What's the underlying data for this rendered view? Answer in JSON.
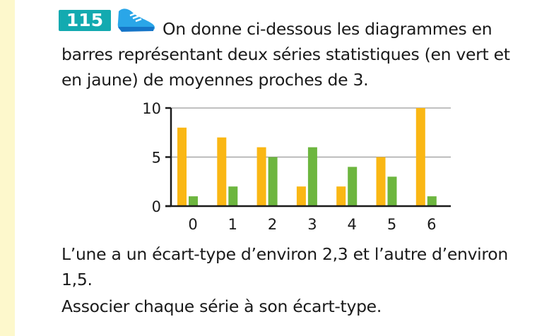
{
  "exercise": {
    "number": "115",
    "icon": "sneaker-icon",
    "intro_line1": "On donne ci-dessous les diagrammes en",
    "intro_line2": "barres représentant deux séries statistiques (en vert et",
    "intro_line3": "en jaune) de moyennes proches de 3.",
    "after_line1": "L’une a un écart-type d’environ 2,3 et l’autre d’environ",
    "after_line2": "1,5.",
    "after_line3": "Associer chaque série à son écart-type."
  },
  "colors": {
    "badge": "#13aab0",
    "yellow_series": "#fab714",
    "green_series": "#6db63f",
    "margin_strip": "#fdf8cc"
  },
  "chart_data": {
    "type": "bar",
    "categories": [
      "0",
      "1",
      "2",
      "3",
      "4",
      "5",
      "6"
    ],
    "series": [
      {
        "color": "#fab714",
        "values": [
          8,
          7,
          6,
          2,
          2,
          5,
          10
        ]
      },
      {
        "color": "#6db63f",
        "values": [
          1,
          2,
          5,
          6,
          4,
          3,
          1
        ]
      }
    ],
    "ylim": [
      0,
      10
    ],
    "yticks": [
      "0",
      "5",
      "10"
    ],
    "grid": true
  }
}
